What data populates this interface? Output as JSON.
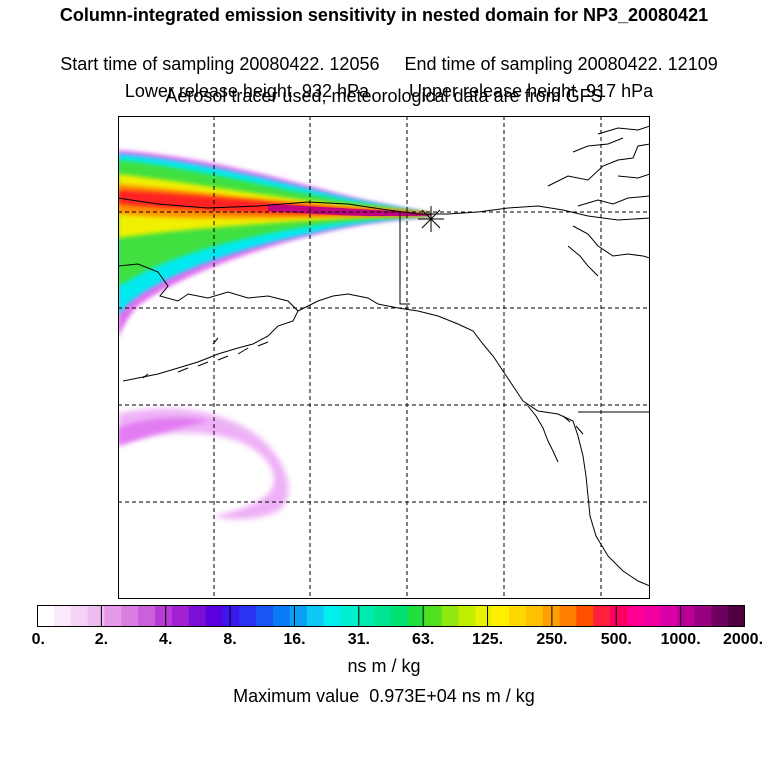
{
  "header": {
    "title": "Column-integrated emission sensitivity in nested domain for NP3_20080421",
    "start_time": "Start time of sampling 20080422. 12056",
    "end_time": "End time of sampling 20080422. 12109",
    "lower_release": "Lower release height  932 hPa",
    "upper_release": "Upper release height  917 hPa",
    "tracer_info": "Aerosol tracer used, meteorological data are from GFS"
  },
  "colorbar": {
    "colors": [
      "#ffffff",
      "#fbe8fb",
      "#f5d3f6",
      "#edbcf0",
      "#e49ae9",
      "#d97ee3",
      "#cc5fdc",
      "#b93bd6",
      "#a321d2",
      "#7a10d6",
      "#5a00e0",
      "#3a17eb",
      "#2a33f0",
      "#1a55f4",
      "#0a7af7",
      "#0a9ef7",
      "#10c8f5",
      "#00f0f0",
      "#00f0d0",
      "#00eab0",
      "#00e690",
      "#00e070",
      "#20e040",
      "#50e020",
      "#90e810",
      "#c0f000",
      "#e8f200",
      "#fff000",
      "#ffd800",
      "#ffc000",
      "#ffa000",
      "#ff8000",
      "#ff5000",
      "#ff2040",
      "#ff0060",
      "#ff0090",
      "#f000a0",
      "#d800a8",
      "#b80098",
      "#980080",
      "#700060",
      "#500040"
    ],
    "tick_labels": [
      "0.",
      "2.",
      "4.",
      "8.",
      "16.",
      "31.",
      "63.",
      "125.",
      "250.",
      "500.",
      "1000.",
      "2000."
    ],
    "units": "ns m / kg"
  },
  "max_value": "Maximum value  0.973E+04 ns m / kg",
  "map": {
    "receptor_marker": "star",
    "plume_colors": {
      "outer": "#e070f0",
      "cyan": "#00eaf0",
      "green": "#40e040",
      "yellow": "#f0f000",
      "orange": "#ff9000",
      "red": "#ff2020",
      "core": "#c00080"
    }
  }
}
